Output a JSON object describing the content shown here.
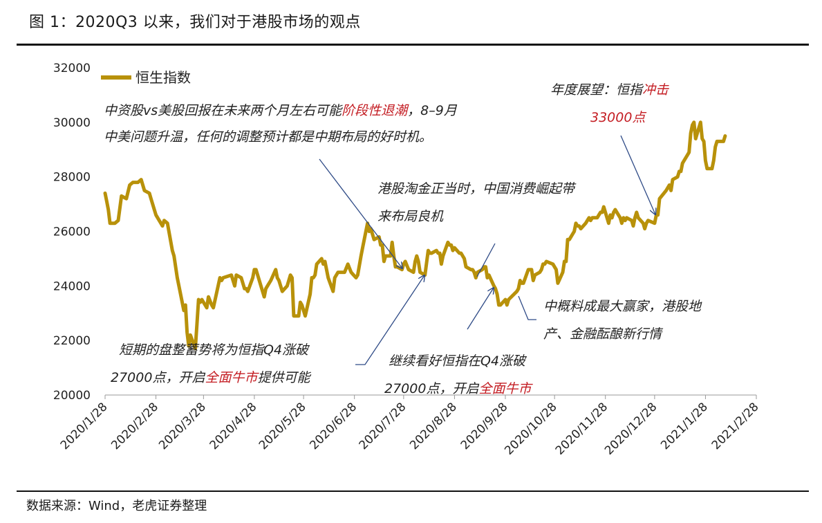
{
  "title": "图 1：2020Q3 以来，我们对于港股市场的观点",
  "source": "数据来源：Wind，老虎证券整理",
  "colors": {
    "series": "#b8910a",
    "arrow": "#2e4a86",
    "highlight": "#c41e24"
  },
  "chart_data": {
    "type": "line",
    "legend": "恒生指数",
    "legend_position": "top-left",
    "ylim": [
      20000,
      32000
    ],
    "yticks": [
      20000,
      22000,
      24000,
      26000,
      28000,
      30000,
      32000
    ],
    "xlim": [
      "2020-01-28",
      "2021-02-28"
    ],
    "xtick_labels": [
      "2020/1/28",
      "2020/2/28",
      "2020/3/28",
      "2020/4/28",
      "2020/5/28",
      "2020/6/28",
      "2020/7/28",
      "2020/8/28",
      "2020/9/28",
      "2020/10/28",
      "2020/11/28",
      "2020/12/28",
      "2021/1/28",
      "2021/2/28"
    ],
    "grid": false,
    "series": [
      {
        "name": "恒生指数",
        "points": [
          [
            "2020-01-28",
            27400
          ],
          [
            "2020-01-29",
            27100
          ],
          [
            "2020-01-30",
            26800
          ],
          [
            "2020-01-31",
            26300
          ],
          [
            "2020-02-03",
            26300
          ],
          [
            "2020-02-05",
            26400
          ],
          [
            "2020-02-07",
            27300
          ],
          [
            "2020-02-10",
            27200
          ],
          [
            "2020-02-12",
            27700
          ],
          [
            "2020-02-14",
            27800
          ],
          [
            "2020-02-17",
            27800
          ],
          [
            "2020-02-19",
            27900
          ],
          [
            "2020-02-21",
            27500
          ],
          [
            "2020-02-24",
            27400
          ],
          [
            "2020-02-25",
            27200
          ],
          [
            "2020-02-27",
            26800
          ],
          [
            "2020-02-28",
            26600
          ],
          [
            "2020-03-02",
            26300
          ],
          [
            "2020-03-03",
            26200
          ],
          [
            "2020-03-04",
            26400
          ],
          [
            "2020-03-06",
            26300
          ],
          [
            "2020-03-09",
            25300
          ],
          [
            "2020-03-10",
            25100
          ],
          [
            "2020-03-12",
            24300
          ],
          [
            "2020-03-13",
            24000
          ],
          [
            "2020-03-16",
            23100
          ],
          [
            "2020-03-17",
            23300
          ],
          [
            "2020-03-18",
            22300
          ],
          [
            "2020-03-19",
            21800
          ],
          [
            "2020-03-20",
            22200
          ],
          [
            "2020-03-23",
            21700
          ],
          [
            "2020-03-24",
            22600
          ],
          [
            "2020-03-25",
            23500
          ],
          [
            "2020-03-26",
            23400
          ],
          [
            "2020-03-27",
            23500
          ],
          [
            "2020-03-30",
            23200
          ],
          [
            "2020-03-31",
            23600
          ],
          [
            "2020-04-02",
            23300
          ],
          [
            "2020-04-03",
            23200
          ],
          [
            "2020-04-07",
            24300
          ],
          [
            "2020-04-08",
            24200
          ],
          [
            "2020-04-09",
            24300
          ],
          [
            "2020-04-14",
            24400
          ],
          [
            "2020-04-16",
            24000
          ],
          [
            "2020-04-17",
            24400
          ],
          [
            "2020-04-20",
            24300
          ],
          [
            "2020-04-22",
            23900
          ],
          [
            "2020-04-23",
            23900
          ],
          [
            "2020-04-24",
            23800
          ],
          [
            "2020-04-27",
            24300
          ],
          [
            "2020-04-28",
            24600
          ],
          [
            "2020-04-29",
            24600
          ],
          [
            "2020-05-04",
            23600
          ],
          [
            "2020-05-05",
            23900
          ],
          [
            "2020-05-06",
            24000
          ],
          [
            "2020-05-08",
            24200
          ],
          [
            "2020-05-11",
            24600
          ],
          [
            "2020-05-12",
            24300
          ],
          [
            "2020-05-13",
            24200
          ],
          [
            "2020-05-15",
            23800
          ],
          [
            "2020-05-18",
            24000
          ],
          [
            "2020-05-20",
            24400
          ],
          [
            "2020-05-21",
            24300
          ],
          [
            "2020-05-22",
            22900
          ],
          [
            "2020-05-25",
            22900
          ],
          [
            "2020-05-26",
            23400
          ],
          [
            "2020-05-27",
            23300
          ],
          [
            "2020-05-28",
            23100
          ],
          [
            "2020-05-29",
            22900
          ],
          [
            "2020-06-01",
            23700
          ],
          [
            "2020-06-02",
            24300
          ],
          [
            "2020-06-03",
            24300
          ],
          [
            "2020-06-04",
            24400
          ],
          [
            "2020-06-05",
            24800
          ],
          [
            "2020-06-08",
            25000
          ],
          [
            "2020-06-09",
            24800
          ],
          [
            "2020-06-10",
            24900
          ],
          [
            "2020-06-12",
            24300
          ],
          [
            "2020-06-15",
            23800
          ],
          [
            "2020-06-16",
            24300
          ],
          [
            "2020-06-18",
            24500
          ],
          [
            "2020-06-22",
            24500
          ],
          [
            "2020-06-24",
            24800
          ],
          [
            "2020-06-26",
            24500
          ],
          [
            "2020-06-29",
            24300
          ],
          [
            "2020-06-30",
            24400
          ],
          [
            "2020-07-02",
            25100
          ],
          [
            "2020-07-03",
            25400
          ],
          [
            "2020-07-06",
            26300
          ],
          [
            "2020-07-07",
            26000
          ],
          [
            "2020-07-08",
            26100
          ],
          [
            "2020-07-10",
            25700
          ],
          [
            "2020-07-13",
            25800
          ],
          [
            "2020-07-14",
            25500
          ],
          [
            "2020-07-15",
            25500
          ],
          [
            "2020-07-16",
            24900
          ],
          [
            "2020-07-17",
            25100
          ],
          [
            "2020-07-20",
            25100
          ],
          [
            "2020-07-21",
            25600
          ],
          [
            "2020-07-22",
            25100
          ],
          [
            "2020-07-23",
            24700
          ],
          [
            "2020-07-24",
            24700
          ],
          [
            "2020-07-27",
            24600
          ],
          [
            "2020-07-28",
            24800
          ],
          [
            "2020-07-29",
            24900
          ],
          [
            "2020-07-31",
            24600
          ],
          [
            "2020-08-03",
            24500
          ],
          [
            "2020-08-04",
            24900
          ],
          [
            "2020-08-05",
            25100
          ],
          [
            "2020-08-06",
            24900
          ],
          [
            "2020-08-07",
            24500
          ],
          [
            "2020-08-10",
            24400
          ],
          [
            "2020-08-12",
            25300
          ],
          [
            "2020-08-13",
            25200
          ],
          [
            "2020-08-14",
            25200
          ],
          [
            "2020-08-17",
            25300
          ],
          [
            "2020-08-18",
            25200
          ],
          [
            "2020-08-19",
            25200
          ],
          [
            "2020-08-20",
            24800
          ],
          [
            "2020-08-21",
            25100
          ],
          [
            "2020-08-24",
            25600
          ],
          [
            "2020-08-25",
            25500
          ],
          [
            "2020-08-26",
            25500
          ],
          [
            "2020-08-27",
            25300
          ],
          [
            "2020-08-28",
            25400
          ],
          [
            "2020-08-31",
            25200
          ],
          [
            "2020-09-01",
            25200
          ],
          [
            "2020-09-02",
            25100
          ],
          [
            "2020-09-03",
            25000
          ],
          [
            "2020-09-04",
            24700
          ],
          [
            "2020-09-07",
            24600
          ],
          [
            "2020-09-08",
            24600
          ],
          [
            "2020-09-09",
            24500
          ],
          [
            "2020-09-10",
            24300
          ],
          [
            "2020-09-11",
            24500
          ],
          [
            "2020-09-14",
            24600
          ],
          [
            "2020-09-15",
            24700
          ],
          [
            "2020-09-16",
            24700
          ],
          [
            "2020-09-17",
            24300
          ],
          [
            "2020-09-18",
            24400
          ],
          [
            "2020-09-21",
            24000
          ],
          [
            "2020-09-22",
            23900
          ],
          [
            "2020-09-23",
            23700
          ],
          [
            "2020-09-24",
            23300
          ],
          [
            "2020-09-25",
            23300
          ],
          [
            "2020-09-28",
            23500
          ],
          [
            "2020-09-29",
            23300
          ],
          [
            "2020-09-30",
            23500
          ],
          [
            "2020-10-05",
            23800
          ],
          [
            "2020-10-06",
            23900
          ],
          [
            "2020-10-07",
            24200
          ],
          [
            "2020-10-08",
            24100
          ],
          [
            "2020-10-09",
            24100
          ],
          [
            "2020-10-12",
            24600
          ],
          [
            "2020-10-14",
            24600
          ],
          [
            "2020-10-15",
            24200
          ],
          [
            "2020-10-16",
            24400
          ],
          [
            "2020-10-19",
            24500
          ],
          [
            "2020-10-20",
            24600
          ],
          [
            "2020-10-21",
            24800
          ],
          [
            "2020-10-22",
            24800
          ],
          [
            "2020-10-23",
            24900
          ],
          [
            "2020-10-27",
            24800
          ],
          [
            "2020-10-28",
            24700
          ],
          [
            "2020-10-29",
            24600
          ],
          [
            "2020-10-30",
            24100
          ],
          [
            "2020-11-02",
            24500
          ],
          [
            "2020-11-03",
            24900
          ],
          [
            "2020-11-04",
            24900
          ],
          [
            "2020-11-05",
            25700
          ],
          [
            "2020-11-06",
            25700
          ],
          [
            "2020-11-09",
            26000
          ],
          [
            "2020-11-10",
            26300
          ],
          [
            "2020-11-11",
            26200
          ],
          [
            "2020-11-12",
            26200
          ],
          [
            "2020-11-13",
            26100
          ],
          [
            "2020-11-16",
            26300
          ],
          [
            "2020-11-17",
            26400
          ],
          [
            "2020-11-18",
            26500
          ],
          [
            "2020-11-19",
            26400
          ],
          [
            "2020-11-20",
            26500
          ],
          [
            "2020-11-23",
            26500
          ],
          [
            "2020-11-24",
            26600
          ],
          [
            "2020-11-25",
            26700
          ],
          [
            "2020-11-26",
            26700
          ],
          [
            "2020-11-27",
            26900
          ],
          [
            "2020-11-30",
            26300
          ],
          [
            "2020-12-01",
            26600
          ],
          [
            "2020-12-02",
            26500
          ],
          [
            "2020-12-03",
            26700
          ],
          [
            "2020-12-04",
            26800
          ],
          [
            "2020-12-07",
            26500
          ],
          [
            "2020-12-08",
            26300
          ],
          [
            "2020-12-09",
            26500
          ],
          [
            "2020-12-10",
            26400
          ],
          [
            "2020-12-11",
            26500
          ],
          [
            "2020-12-14",
            26400
          ],
          [
            "2020-12-15",
            26200
          ],
          [
            "2020-12-16",
            26500
          ],
          [
            "2020-12-17",
            26700
          ],
          [
            "2020-12-18",
            26500
          ],
          [
            "2020-12-21",
            26300
          ],
          [
            "2020-12-22",
            26100
          ],
          [
            "2020-12-23",
            26300
          ],
          [
            "2020-12-24",
            26400
          ],
          [
            "2020-12-28",
            26300
          ],
          [
            "2020-12-29",
            26600
          ],
          [
            "2020-12-30",
            26600
          ],
          [
            "2020-12-31",
            27200
          ],
          [
            "2021-01-04",
            27500
          ],
          [
            "2021-01-05",
            27600
          ],
          [
            "2021-01-06",
            27700
          ],
          [
            "2021-01-07",
            27500
          ],
          [
            "2021-01-08",
            27900
          ],
          [
            "2021-01-11",
            28000
          ],
          [
            "2021-01-12",
            28200
          ],
          [
            "2021-01-13",
            28200
          ],
          [
            "2021-01-14",
            28500
          ],
          [
            "2021-01-15",
            28600
          ],
          [
            "2021-01-18",
            28900
          ],
          [
            "2021-01-19",
            29600
          ],
          [
            "2021-01-20",
            29900
          ],
          [
            "2021-01-21",
            30000
          ],
          [
            "2021-01-22",
            29400
          ],
          [
            "2021-01-25",
            30000
          ],
          [
            "2021-01-26",
            29400
          ],
          [
            "2021-01-27",
            29300
          ],
          [
            "2021-01-28",
            28600
          ],
          [
            "2021-01-29",
            28300
          ],
          [
            "2021-02-01",
            28300
          ],
          [
            "2021-02-02",
            28600
          ],
          [
            "2021-02-03",
            29100
          ],
          [
            "2021-02-04",
            29300
          ],
          [
            "2021-02-05",
            29300
          ],
          [
            "2021-02-08",
            29300
          ],
          [
            "2021-02-09",
            29500
          ]
        ]
      }
    ],
    "annotations": [
      {
        "lines": [
          [
            {
              "t": "中资股vs美股回报在未来两个月左右可能"
            },
            {
              "t": "阶段性退潮",
              "red": true
            },
            {
              "t": "，8–9月"
            }
          ],
          [
            {
              "t": "中美问题升温，任何的调整预计都是中期布局的好时机。"
            }
          ]
        ]
      },
      {
        "lines": [
          [
            {
              "t": "年度展望：恒指"
            },
            {
              "t": "冲击",
              "red": true
            }
          ],
          [
            {
              "t": "33000点",
              "red": true
            }
          ]
        ]
      },
      {
        "lines": [
          [
            {
              "t": "港股淘金正当时，中国消费崛起带"
            }
          ],
          [
            {
              "t": "来布局良机"
            }
          ]
        ]
      },
      {
        "lines": [
          [
            {
              "t": "中概料成最大赢家，港股地"
            }
          ],
          [
            {
              "t": "产、金融酝酿新行情"
            }
          ]
        ]
      },
      {
        "lines": [
          [
            {
              "t": "短期的盘整蓄势将为恒指Q4涨破"
            }
          ],
          [
            {
              "t": "27000点，开启"
            },
            {
              "t": "全面牛市",
              "red": true
            },
            {
              "t": "提供可能"
            }
          ]
        ]
      },
      {
        "lines": [
          [
            {
              "t": "继续看好恒指在Q4涨破"
            }
          ],
          [
            {
              "t": "27000点，开启"
            },
            {
              "t": "全面牛市",
              "red": true
            }
          ]
        ]
      }
    ]
  }
}
